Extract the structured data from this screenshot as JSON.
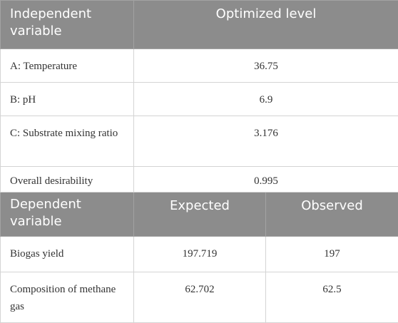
{
  "optimization_header": {
    "col1": "Independent variable",
    "col2": "Optimized level"
  },
  "optimization_rows": [
    {
      "variable": "A: Temperature",
      "level": "36.75"
    },
    {
      "variable": "B: pH",
      "level": "6.9"
    },
    {
      "variable": "C: Substrate mixing ratio",
      "level": "3.176"
    },
    {
      "variable": "Overall desirability",
      "level": "0.995"
    }
  ],
  "response_header": {
    "col1": "Dependent variable",
    "col2": "Expected",
    "col3": "Observed"
  },
  "response_rows": [
    {
      "variable": "Biogas yield",
      "expected": "197.719",
      "observed": "197"
    },
    {
      "variable": "Composition of methane gas",
      "expected": "62.702",
      "observed": "62.5"
    }
  ]
}
